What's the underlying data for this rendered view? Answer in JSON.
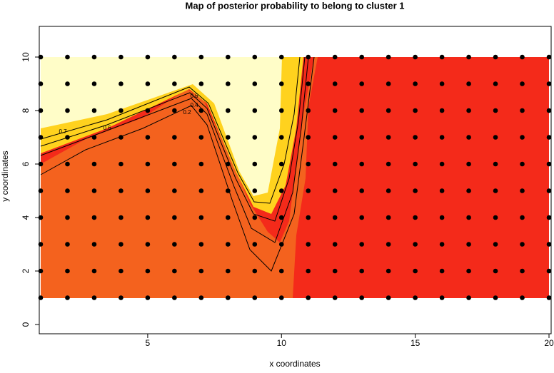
{
  "chart_data": {
    "type": "contour-map",
    "title": "Map of posterior probability to belong to cluster  1",
    "x_label": "x coordinates",
    "y_label": "y coordinates",
    "xlim": [
      1,
      20
    ],
    "ylim": [
      0,
      10
    ],
    "xticks": [
      5,
      10,
      15,
      20
    ],
    "yticks": [
      0,
      2,
      4,
      6,
      8,
      10
    ],
    "grid_x": [
      1,
      2,
      3,
      4,
      5,
      6,
      7,
      8,
      9,
      10,
      11,
      12,
      13,
      14,
      15,
      16,
      17,
      18,
      19,
      20
    ],
    "grid_y": [
      1,
      2,
      3,
      4,
      5,
      6,
      7,
      8,
      9,
      10
    ],
    "point_color": "#000000",
    "contour_levels": [
      0.7,
      0.6,
      0.6,
      0.4,
      0.2
    ]
  }
}
